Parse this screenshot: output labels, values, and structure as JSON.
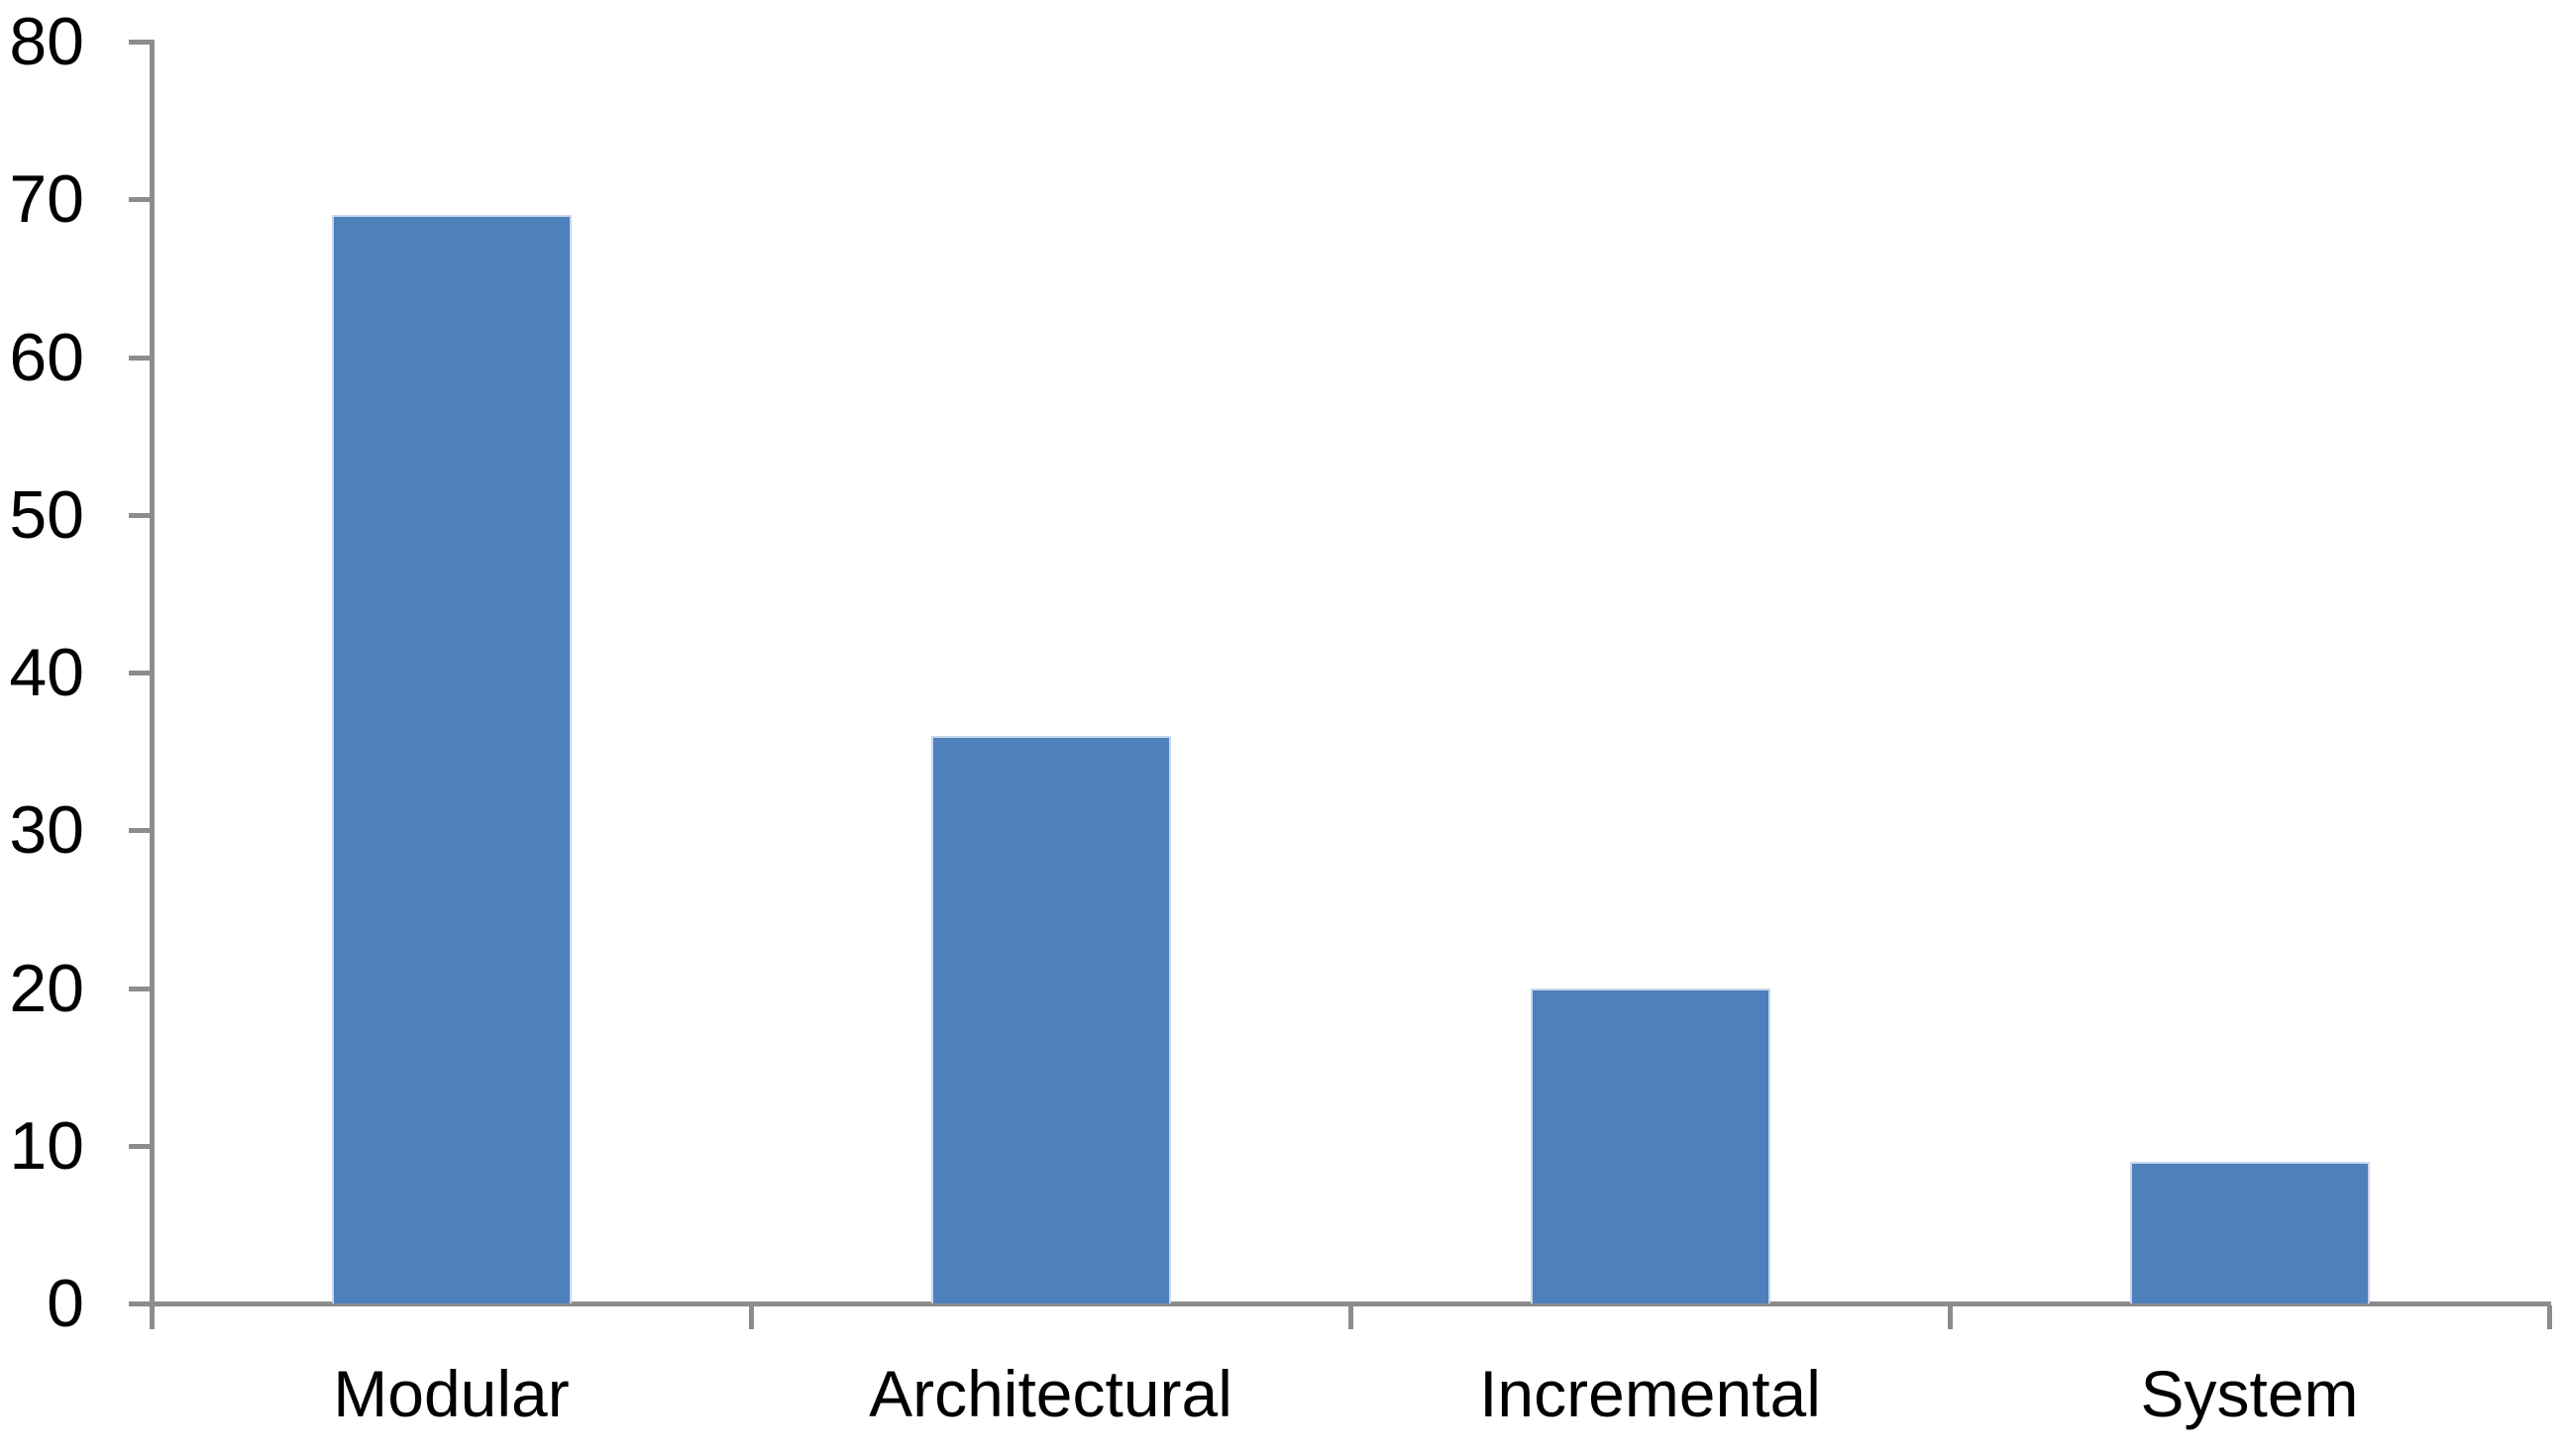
{
  "chart_data": {
    "type": "bar",
    "title": "",
    "categories": [
      "Modular",
      "Architectural",
      "Incremental",
      "System"
    ],
    "values": [
      69,
      36,
      20,
      9
    ],
    "xlabel": "",
    "ylabel": "",
    "ylim": [
      0,
      80
    ],
    "yticks": [
      0,
      10,
      20,
      30,
      40,
      50,
      60,
      70,
      80
    ],
    "grid": false,
    "legend": "none",
    "colors": {
      "bar_fill": "#4E81BC",
      "bar_border": "#C8D7EC",
      "axis": "#8C8C8C",
      "text": "#000000",
      "background": "#FFFFFF"
    }
  }
}
